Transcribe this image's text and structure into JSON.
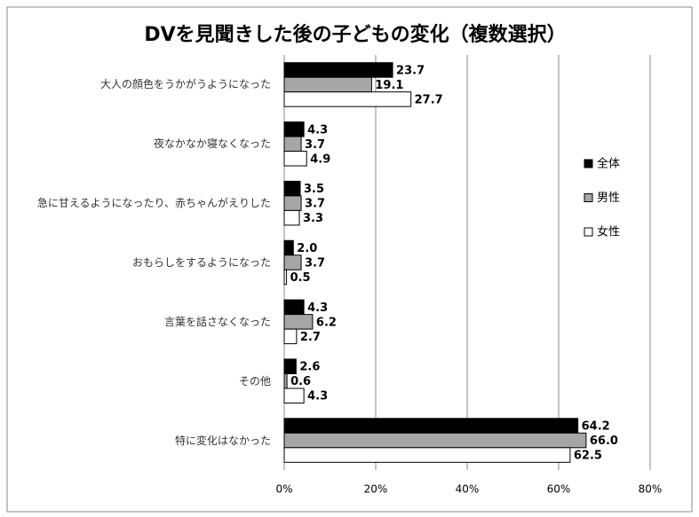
{
  "chart_data": {
    "type": "barh",
    "title": "DVを見聞きした後の子どもの変化（複数選択）",
    "categories": [
      "大人の顔色をうかがうようになった",
      "夜なかなか寝なくなった",
      "急に甘えるようになったり、赤ちゃんがえりした",
      "おもらしをするようになった",
      "言葉を話さなくなった",
      "その他",
      "特に変化はなかった"
    ],
    "series": [
      {
        "name": "全体",
        "color": "#000000",
        "values": [
          23.7,
          4.3,
          3.5,
          2.0,
          4.3,
          2.6,
          64.2
        ],
        "value_labels": [
          "23.7",
          "4.3",
          "3.5",
          "2.0",
          "4.3",
          "2.6",
          "64.2"
        ]
      },
      {
        "name": "男性",
        "color": "#a6a6a6",
        "values": [
          19.1,
          3.7,
          3.7,
          3.7,
          6.2,
          0.6,
          66.0
        ],
        "value_labels": [
          "19.1",
          "3.7",
          "3.7",
          "3.7",
          "6.2",
          "0.6",
          "66.0"
        ]
      },
      {
        "name": "女性",
        "color": "#ffffff",
        "values": [
          27.7,
          4.9,
          3.3,
          0.5,
          2.7,
          4.3,
          62.5
        ],
        "value_labels": [
          "27.7",
          "4.9",
          "3.3",
          "0.5",
          "2.7",
          "4.3",
          "62.5"
        ]
      }
    ],
    "xlim": [
      0,
      80
    ],
    "xticks": [
      {
        "value": 0,
        "label": "0%"
      },
      {
        "value": 20,
        "label": "20%"
      },
      {
        "value": 40,
        "label": "40%"
      },
      {
        "value": 60,
        "label": "60%"
      },
      {
        "value": 80,
        "label": "80%"
      }
    ],
    "grid": true,
    "legend": "right"
  }
}
